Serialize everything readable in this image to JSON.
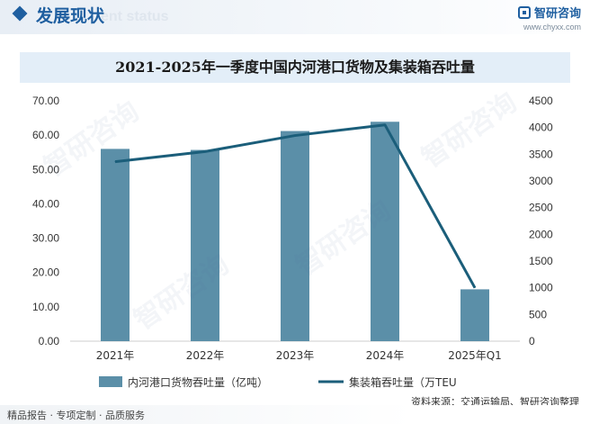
{
  "header": {
    "title": "发展现状",
    "ghost_text": "ent status"
  },
  "brand": {
    "name": "智研咨询",
    "url": "www.chyxx.com"
  },
  "watermark": "智研咨询",
  "chart_data": {
    "type": "bar",
    "title": "2021-2025年一季度中国内河港口货物及集装箱吞吐量",
    "categories": [
      "2021年",
      "2022年",
      "2023年",
      "2024年",
      "2025年Q1"
    ],
    "series": [
      {
        "name": "内河港口货物吞吐量（亿吨）",
        "type": "bar",
        "axis": "left",
        "color": "#5b8fa8",
        "values": [
          56.0,
          55.7,
          61.2,
          63.9,
          15.1
        ]
      },
      {
        "name": "集装箱吞吐量（万TEU",
        "type": "line",
        "axis": "right",
        "color": "#1b5e7a",
        "values": [
          3360,
          3550,
          3850,
          4050,
          1000
        ]
      }
    ],
    "y_left": {
      "min": 0,
      "max": 70,
      "step": 10,
      "ticks": [
        "0.00",
        "10.00",
        "20.00",
        "30.00",
        "40.00",
        "50.00",
        "60.00",
        "70.00"
      ]
    },
    "y_right": {
      "min": 0,
      "max": 4500,
      "step": 500,
      "ticks": [
        "0",
        "500",
        "1000",
        "1500",
        "2000",
        "2500",
        "3000",
        "3500",
        "4000",
        "4500"
      ]
    },
    "grid": false,
    "legend_position": "bottom"
  },
  "source": "资料来源：交通运输局、智研咨询整理",
  "footer": {
    "slogan": "精品报告 · 专项定制 · 品质服务"
  }
}
